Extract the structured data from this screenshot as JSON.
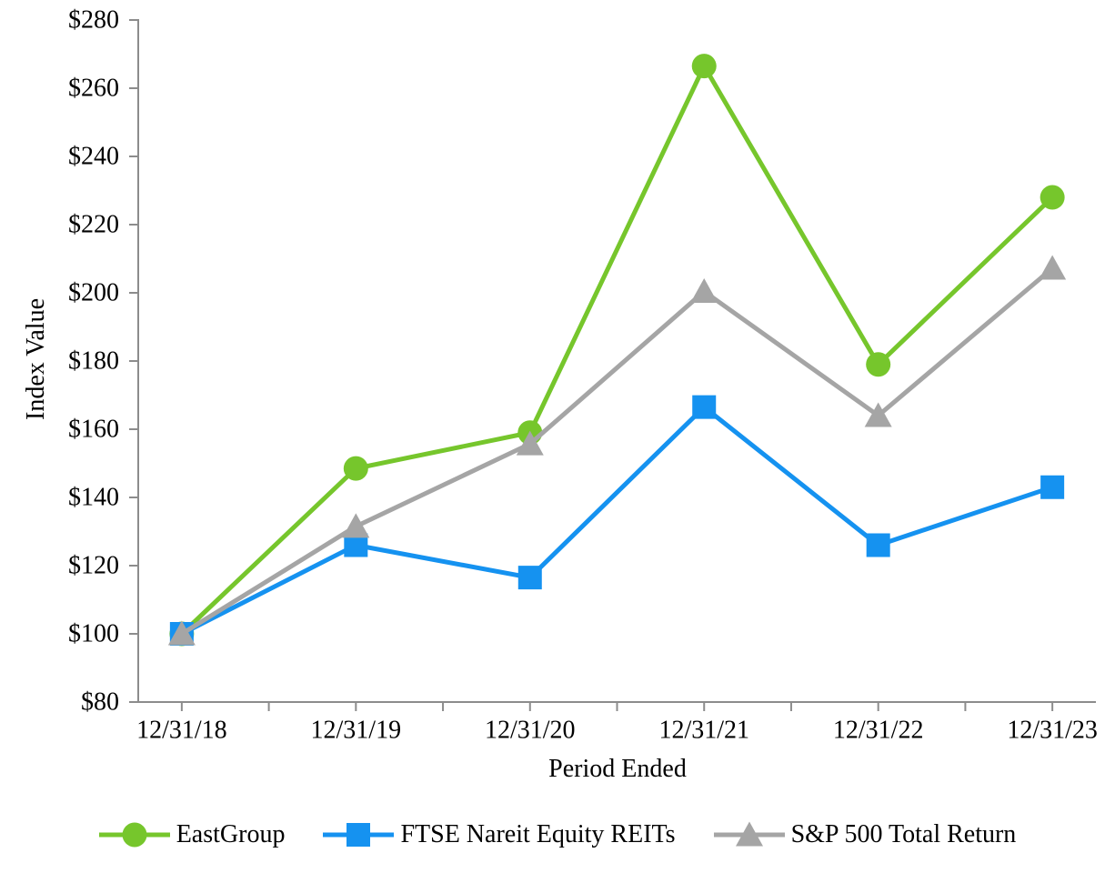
{
  "chart_data": {
    "type": "line",
    "xlabel": "Period Ended",
    "ylabel": "Index Value",
    "categories": [
      "12/31/18",
      "12/31/19",
      "12/31/20",
      "12/31/21",
      "12/31/22",
      "12/31/23"
    ],
    "y_tick_labels": [
      "$80",
      "$100",
      "$120",
      "$140",
      "$160",
      "$180",
      "$200",
      "$220",
      "$240",
      "$260",
      "$280"
    ],
    "y_tick_values": [
      80,
      100,
      120,
      140,
      160,
      180,
      200,
      220,
      240,
      260,
      280
    ],
    "ylim": [
      80,
      280
    ],
    "grid": false,
    "legend_position": "bottom",
    "axis_color": "#8C8C8C",
    "text_color": "#000000",
    "series": [
      {
        "name": "EastGroup",
        "marker": "circle",
        "color": "#76C62C",
        "values": [
          100,
          148.5,
          159,
          266.5,
          179,
          228
        ]
      },
      {
        "name": "FTSE Nareit Equity REITs",
        "marker": "square",
        "color": "#1592F0",
        "values": [
          100,
          126,
          116.5,
          166.5,
          126,
          143
        ]
      },
      {
        "name": "S&P 500 Total Return",
        "marker": "triangle",
        "color": "#A5A5A5",
        "values": [
          100,
          131.5,
          155.7,
          200.4,
          164,
          207.2
        ]
      }
    ]
  }
}
